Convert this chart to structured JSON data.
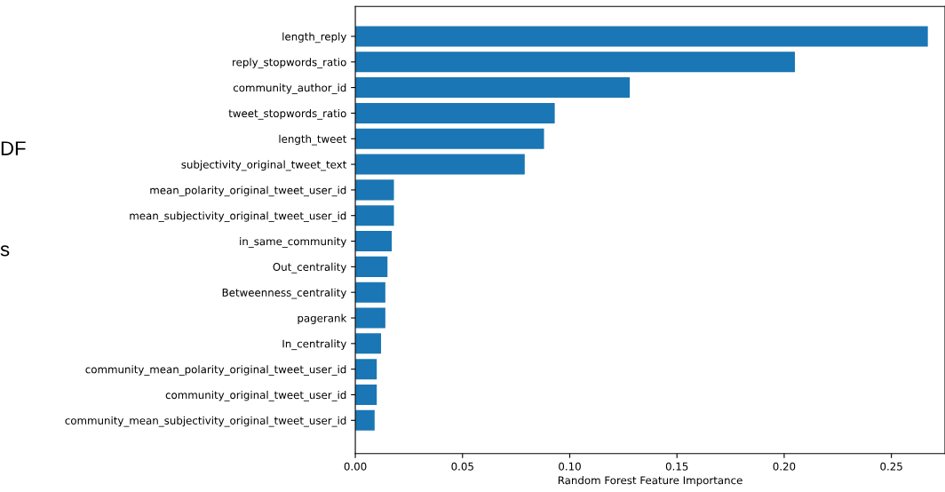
{
  "chart_data": {
    "type": "bar",
    "orientation": "horizontal",
    "xlabel": "Random Forest Feature Importance",
    "categories": [
      "length_reply",
      "reply_stopwords_ratio",
      "community_author_id",
      "tweet_stopwords_ratio",
      "length_tweet",
      "subjectivity_original_tweet_text",
      "mean_polarity_original_tweet_user_id",
      "mean_subjectivity_original_tweet_user_id",
      "in_same_community",
      "Out_centrality",
      "Betweenness_centrality",
      "pagerank",
      "In_centrality",
      "community_mean_polarity_original_tweet_user_id",
      "community_original_tweet_user_id",
      "community_mean_subjectivity_original_tweet_user_id"
    ],
    "values": [
      0.267,
      0.205,
      0.128,
      0.093,
      0.088,
      0.079,
      0.018,
      0.018,
      0.017,
      0.015,
      0.014,
      0.014,
      0.012,
      0.01,
      0.01,
      0.009
    ],
    "color": "#1a76b4",
    "xlim": [
      0,
      0.275
    ],
    "xticks": [
      {
        "value": 0,
        "label": "0.00"
      },
      0.05,
      {
        "value": 0.1,
        "label": "0.10"
      },
      0.15,
      {
        "value": 0.2,
        "label": "0.20"
      },
      0.25
    ],
    "grid": false,
    "annotations": [
      "DF",
      "s"
    ]
  }
}
